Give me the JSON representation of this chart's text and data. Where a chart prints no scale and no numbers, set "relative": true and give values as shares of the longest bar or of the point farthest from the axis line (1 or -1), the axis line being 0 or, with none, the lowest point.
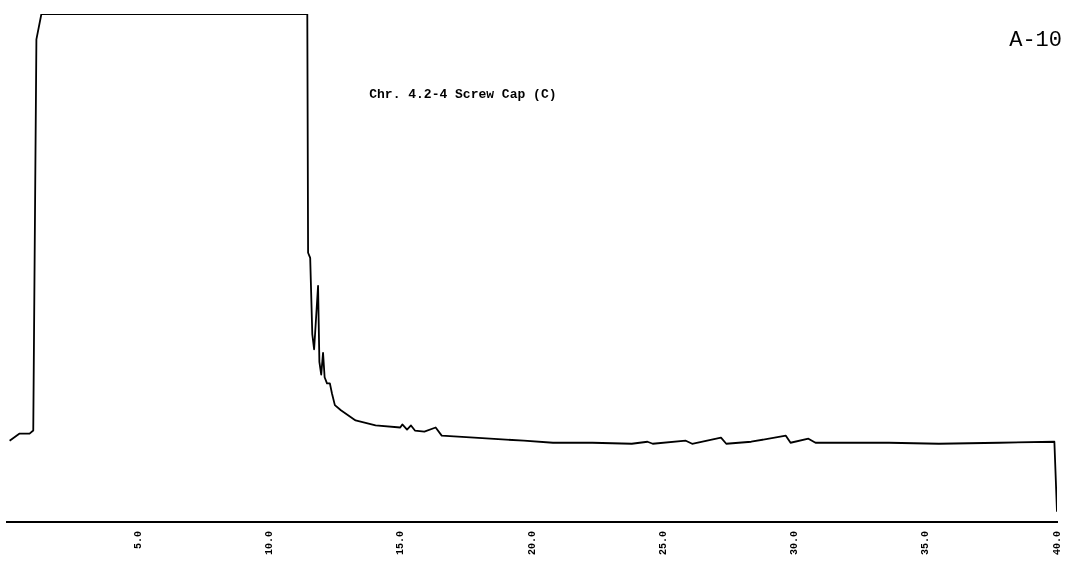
{
  "chart_data": {
    "type": "line",
    "title": "Chr. 4.2-4 Screw Cap (C)",
    "annotations": [
      "A-10"
    ],
    "relative": true,
    "grid": false,
    "legend": false,
    "marker": "none",
    "line_style": "solid",
    "xlim": [
      0,
      40
    ],
    "xticks": [
      {
        "value": 5,
        "label": "5.0"
      },
      {
        "value": 10,
        "label": "10.0"
      },
      {
        "value": 15,
        "label": "15.0"
      },
      {
        "value": 20,
        "label": "20.0"
      },
      {
        "value": 25,
        "label": "25.0"
      },
      {
        "value": 30,
        "label": "30.0"
      },
      {
        "value": 35,
        "label": "35.0"
      },
      {
        "value": 40,
        "label": "40.0"
      }
    ],
    "series": [
      {
        "color": "#000000",
        "x": [
          0.1,
          0.48,
          0.86,
          1.0,
          1.12,
          1.31,
          11.44,
          11.47,
          11.55,
          11.63,
          11.7,
          11.85,
          11.9,
          11.97,
          12.04,
          12.1,
          12.19,
          12.3,
          12.38,
          12.49,
          12.72,
          13.28,
          14.04,
          14.98,
          15.06,
          15.24,
          15.39,
          15.54,
          15.9,
          16.33,
          16.56,
          17.8,
          19.69,
          20.8,
          22.3,
          23.8,
          24.4,
          24.6,
          25.86,
          26.1,
          27.2,
          27.4,
          28.35,
          29.67,
          29.85,
          30.53,
          30.8,
          33.6,
          35.5,
          37.8,
          39.9,
          40.0
        ],
        "values": [
          0.16,
          0.174,
          0.174,
          0.18,
          0.95,
          1.0,
          1.0,
          0.53,
          0.52,
          0.37,
          0.34,
          0.465,
          0.315,
          0.29,
          0.333,
          0.285,
          0.273,
          0.273,
          0.253,
          0.23,
          0.22,
          0.2,
          0.19,
          0.186,
          0.192,
          0.182,
          0.19,
          0.18,
          0.178,
          0.186,
          0.17,
          0.166,
          0.16,
          0.156,
          0.156,
          0.154,
          0.158,
          0.154,
          0.16,
          0.154,
          0.166,
          0.154,
          0.158,
          0.17,
          0.156,
          0.164,
          0.156,
          0.156,
          0.154,
          0.156,
          0.158,
          0.02
        ]
      }
    ]
  }
}
